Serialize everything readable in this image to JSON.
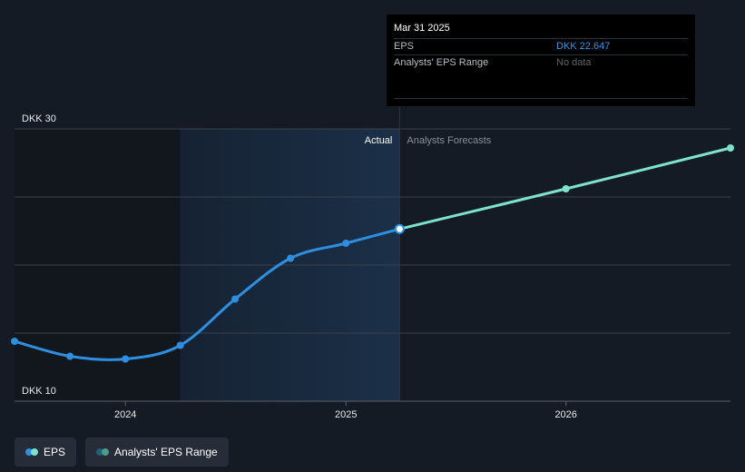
{
  "chart_data": {
    "type": "line",
    "y_unit": "DKK",
    "ylim": [
      10,
      30
    ],
    "xlim": [
      "2023-07-01",
      "2026-10-01"
    ],
    "y_tick_labels": [
      {
        "value": 30,
        "label": "DKK 30"
      },
      {
        "value": 10,
        "label": "DKK 10"
      }
    ],
    "y_gridlines": [
      15,
      20,
      25
    ],
    "x_ticks": [
      {
        "date": "2024-01-01",
        "label": "2024"
      },
      {
        "date": "2025-01-01",
        "label": "2025"
      },
      {
        "date": "2026-01-01",
        "label": "2026"
      }
    ],
    "region_labels": {
      "actual": "Actual",
      "forecast": "Analysts Forecasts"
    },
    "series": [
      {
        "name": "EPS",
        "color": "#2e8fe0",
        "points": [
          {
            "x": "2023-07-01",
            "y": 14.4
          },
          {
            "x": "2023-10-01",
            "y": 13.3
          },
          {
            "x": "2024-01-01",
            "y": 13.1
          },
          {
            "x": "2024-04-01",
            "y": 14.1
          },
          {
            "x": "2024-07-01",
            "y": 17.5
          },
          {
            "x": "2024-10-01",
            "y": 20.5
          },
          {
            "x": "2025-01-01",
            "y": 21.6
          },
          {
            "x": "2025-03-31",
            "y": 22.647
          }
        ]
      },
      {
        "name": "EPS forecast",
        "color": "#7de3cf",
        "points": [
          {
            "x": "2025-03-31",
            "y": 22.647
          },
          {
            "x": "2026-01-01",
            "y": 25.6
          },
          {
            "x": "2026-10-01",
            "y": 28.6
          }
        ]
      }
    ],
    "shaded_past_region": {
      "from": "2024-04-01",
      "to": "2025-03-31"
    }
  },
  "tooltip": {
    "date": "Mar 31 2025",
    "rows": [
      {
        "label": "EPS",
        "value": "DKK 22.647"
      },
      {
        "label": "Analysts' EPS Range",
        "value": "No data"
      }
    ]
  },
  "legend": {
    "items": [
      {
        "label": "EPS",
        "color_a": "#2e8fe0",
        "color_b": "#7de3cf"
      },
      {
        "label": "Analysts' EPS Range",
        "color_a": "#1f5f7a",
        "color_b": "#4a9c8c"
      }
    ]
  },
  "colors": {
    "background": "#151b24",
    "grid": "#3a414b",
    "axis_text": "#e8eaed",
    "past_shade": "#1a2b3e"
  }
}
